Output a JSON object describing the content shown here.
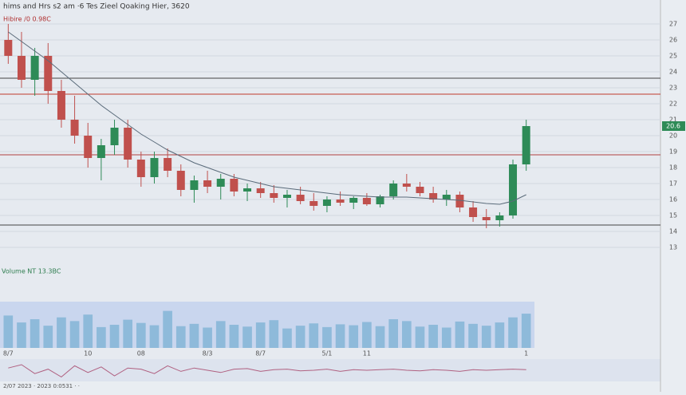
{
  "chart_data": {
    "type": "candlestick",
    "title": "hims and Hrs s2 am  ·6 Tes Zieel Qoaking Hier, 3620",
    "subtitle": "Hibire /0 0.98C",
    "volume_label": "Volume NT 13.3BC",
    "footer": "2/07 2023 · 2023 0:0531 · ·",
    "categories": [
      "8/7",
      null,
      null,
      null,
      null,
      null,
      "10",
      null,
      null,
      null,
      "08",
      null,
      null,
      null,
      null,
      "8/3",
      null,
      null,
      null,
      "8/7",
      null,
      null,
      null,
      null,
      "5/1",
      null,
      null,
      "11",
      null,
      null,
      null,
      null,
      null,
      null,
      null,
      null,
      null,
      null,
      null,
      "1"
    ],
    "open": [
      26,
      25,
      23.5,
      25,
      22.8,
      21,
      20,
      18.6,
      19.4,
      20.5,
      18.5,
      17.4,
      18.6,
      17.8,
      16.6,
      17.2,
      16.8,
      17.3,
      16.5,
      16.7,
      16.4,
      16.1,
      16.3,
      15.9,
      15.6,
      16,
      15.8,
      16.1,
      15.7,
      16.2,
      17,
      16.8,
      16.4,
      16,
      16.3,
      15.5,
      14.9,
      14.7,
      15,
      18.2
    ],
    "high": [
      27,
      26.5,
      25.5,
      25.8,
      23.5,
      22.5,
      20.8,
      19.8,
      21,
      21,
      19,
      19,
      19.2,
      18.2,
      17.5,
      17.8,
      17.6,
      17.6,
      17,
      17.1,
      16.9,
      16.6,
      16.8,
      16.4,
      16.2,
      16.5,
      16.2,
      16.4,
      16.3,
      17.2,
      17.6,
      17.1,
      16.8,
      16.6,
      16.5,
      15.9,
      15.4,
      15.2,
      18.5,
      21
    ],
    "low": [
      24.5,
      23,
      22.5,
      22,
      20.5,
      19.5,
      18,
      17.2,
      18.8,
      18,
      16.8,
      17,
      17.4,
      16.2,
      15.8,
      16.4,
      16,
      16.2,
      15.9,
      16.1,
      15.8,
      15.5,
      15.7,
      15.3,
      15.2,
      15.6,
      15.4,
      15.6,
      15.5,
      16,
      16.5,
      16.2,
      15.8,
      15.6,
      15.2,
      14.6,
      14.2,
      14.3,
      14.8,
      17.8
    ],
    "close": [
      25,
      23.5,
      25,
      22.8,
      21,
      20,
      18.6,
      19.4,
      20.5,
      18.5,
      17.4,
      18.6,
      17.8,
      16.6,
      17.2,
      16.8,
      17.3,
      16.5,
      16.7,
      16.4,
      16.1,
      16.3,
      15.9,
      15.6,
      16,
      15.8,
      16.1,
      15.7,
      16.2,
      17,
      16.8,
      16.4,
      16,
      16.3,
      15.5,
      14.9,
      14.7,
      15,
      18.2,
      20.6
    ],
    "ma": [
      26.5,
      25.9,
      25.3,
      24.7,
      24,
      23.3,
      22.6,
      21.9,
      21.3,
      20.7,
      20.1,
      19.6,
      19.1,
      18.7,
      18.3,
      18,
      17.7,
      17.4,
      17.2,
      17,
      16.8,
      16.7,
      16.6,
      16.5,
      16.4,
      16.3,
      16.25,
      16.2,
      16.15,
      16.15,
      16.15,
      16.1,
      16.05,
      16,
      15.95,
      15.85,
      15.75,
      15.7,
      15.9,
      16.3
    ],
    "volume": [
      70,
      55,
      62,
      48,
      66,
      58,
      72,
      45,
      50,
      61,
      54,
      49,
      80,
      47,
      52,
      44,
      58,
      50,
      46,
      55,
      60,
      42,
      48,
      53,
      45,
      51,
      49,
      56,
      47,
      62,
      58,
      46,
      50,
      44,
      57,
      52,
      48,
      55,
      66,
      74
    ],
    "oscillator": [
      0.2,
      0.5,
      -0.3,
      0.1,
      -0.6,
      0.4,
      -0.2,
      0.3,
      -0.5,
      0.2,
      0.1,
      -0.3,
      0.4,
      -0.1,
      0.2,
      0,
      -0.2,
      0.1,
      0.15,
      -0.1,
      0.05,
      0.1,
      -0.05,
      0,
      0.1,
      -0.1,
      0.05,
      0,
      0.05,
      0.1,
      0,
      -0.05,
      0.05,
      0,
      -0.1,
      0.05,
      0,
      0.05,
      0.1,
      0.05
    ],
    "ylim": [
      12,
      28
    ],
    "yticks": [
      13,
      14,
      15,
      16,
      17,
      18,
      19,
      20,
      21,
      22,
      23,
      24,
      25,
      26,
      27
    ],
    "vol_lim": [
      0,
      100
    ],
    "osc_lim": [
      -1,
      1
    ],
    "levels": [
      {
        "value": 23.6,
        "color": "#444444"
      },
      {
        "value": 22.6,
        "color": "#c0392b"
      },
      {
        "value": 18.8,
        "color": "#b04040"
      },
      {
        "value": 14.4,
        "color": "#444444"
      }
    ],
    "last_price": 20.6,
    "up_color": "#2e8b57",
    "down_color": "#c0504d",
    "ma_color": "#5a6b7a",
    "volume_color": "#7fb3d5",
    "grid": true
  }
}
